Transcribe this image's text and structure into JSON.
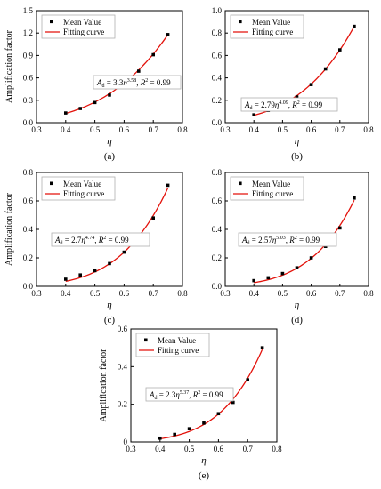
{
  "chart_data": [
    {
      "panel_label": "(a)",
      "type": "scatter",
      "xlabel": "η",
      "ylabel": "Amplification factor",
      "xlim": [
        0.3,
        0.8
      ],
      "ylim": [
        0,
        1.5
      ],
      "xticks": [
        "0.3",
        "0.4",
        "0.5",
        "0.6",
        "0.7",
        "0.8"
      ],
      "yticks": [
        "0.0",
        "0.3",
        "0.6",
        "0.9",
        "1.2",
        "1.5"
      ],
      "legend": [
        "Mean Value",
        "Fitting curve"
      ],
      "annotation": "A_d = 3.3η^3.58, R² = 0.99",
      "fit": {
        "coef": 3.3,
        "exp": 3.58
      },
      "series": [
        {
          "name": "Mean Value",
          "x": [
            0.4,
            0.45,
            0.5,
            0.55,
            0.6,
            0.65,
            0.7,
            0.75
          ],
          "y": [
            0.13,
            0.19,
            0.27,
            0.37,
            0.52,
            0.69,
            0.91,
            1.18
          ]
        }
      ]
    },
    {
      "panel_label": "(b)",
      "type": "scatter",
      "xlabel": "η",
      "ylabel": "",
      "xlim": [
        0.3,
        0.8
      ],
      "ylim": [
        0,
        1.0
      ],
      "xticks": [
        "0.3",
        "0.4",
        "0.5",
        "0.6",
        "0.7",
        "0.8"
      ],
      "yticks": [
        "0.0",
        "0.2",
        "0.4",
        "0.6",
        "0.8",
        "1.0"
      ],
      "legend": [
        "Mean Value",
        "Fitting curve"
      ],
      "annotation": "A_d = 2.79η^4.09, R² = 0.99",
      "fit": {
        "coef": 2.79,
        "exp": 4.09
      },
      "series": [
        {
          "name": "Mean Value",
          "x": [
            0.4,
            0.45,
            0.5,
            0.55,
            0.6,
            0.65,
            0.7,
            0.75
          ],
          "y": [
            0.07,
            0.11,
            0.16,
            0.23,
            0.34,
            0.48,
            0.65,
            0.86
          ]
        }
      ]
    },
    {
      "panel_label": "(c)",
      "type": "scatter",
      "xlabel": "η",
      "ylabel": "Amplification factor",
      "xlim": [
        0.3,
        0.8
      ],
      "ylim": [
        0,
        0.8
      ],
      "xticks": [
        "0.3",
        "0.4",
        "0.5",
        "0.6",
        "0.7",
        "0.8"
      ],
      "yticks": [
        "0.0",
        "0.2",
        "0.4",
        "0.6",
        "0.8"
      ],
      "legend": [
        "Mean Value",
        "Fitting curve"
      ],
      "annotation": "A_d = 2.7η^4.74, R² = 0.99",
      "fit": {
        "coef": 2.7,
        "exp": 4.74
      },
      "series": [
        {
          "name": "Mean Value",
          "x": [
            0.4,
            0.45,
            0.5,
            0.55,
            0.6,
            0.65,
            0.7,
            0.75
          ],
          "y": [
            0.05,
            0.08,
            0.11,
            0.16,
            0.24,
            0.34,
            0.48,
            0.71
          ]
        }
      ]
    },
    {
      "panel_label": "(d)",
      "type": "scatter",
      "xlabel": "η",
      "ylabel": "",
      "xlim": [
        0.3,
        0.8
      ],
      "ylim": [
        0,
        0.8
      ],
      "xticks": [
        "0.3",
        "0.4",
        "0.5",
        "0.6",
        "0.7",
        "0.8"
      ],
      "yticks": [
        "0.0",
        "0.2",
        "0.4",
        "0.6",
        "0.8"
      ],
      "legend": [
        "Mean Value",
        "Fitting curve"
      ],
      "annotation": "A_d = 2.57η^5.03, R² = 0.99",
      "fit": {
        "coef": 2.57,
        "exp": 5.03
      },
      "series": [
        {
          "name": "Mean Value",
          "x": [
            0.4,
            0.45,
            0.5,
            0.55,
            0.6,
            0.65,
            0.7,
            0.75
          ],
          "y": [
            0.04,
            0.06,
            0.09,
            0.13,
            0.2,
            0.28,
            0.41,
            0.62
          ]
        }
      ]
    },
    {
      "panel_label": "(e)",
      "type": "scatter",
      "xlabel": "η",
      "ylabel": "Amplification factor",
      "xlim": [
        0.3,
        0.8
      ],
      "ylim": [
        0,
        0.6
      ],
      "xticks": [
        "0.3",
        "0.4",
        "0.5",
        "0.6",
        "0.7",
        "0.8"
      ],
      "yticks": [
        "0",
        "0.2",
        "0.4",
        "0.6"
      ],
      "legend": [
        "Mean Value",
        "Fitting curve"
      ],
      "annotation": "A_d = 2.3η^5.37, R² = 0.99",
      "fit": {
        "coef": 2.3,
        "exp": 5.37
      },
      "series": [
        {
          "name": "Mean Value",
          "x": [
            0.4,
            0.45,
            0.5,
            0.55,
            0.6,
            0.65,
            0.7,
            0.75
          ],
          "y": [
            0.02,
            0.04,
            0.07,
            0.1,
            0.15,
            0.21,
            0.33,
            0.5
          ]
        }
      ]
    }
  ],
  "colors": {
    "axis": "#000000",
    "marker": "#000000",
    "fit_curve": "#e3120b",
    "legend_box": "#b0b0b0"
  }
}
